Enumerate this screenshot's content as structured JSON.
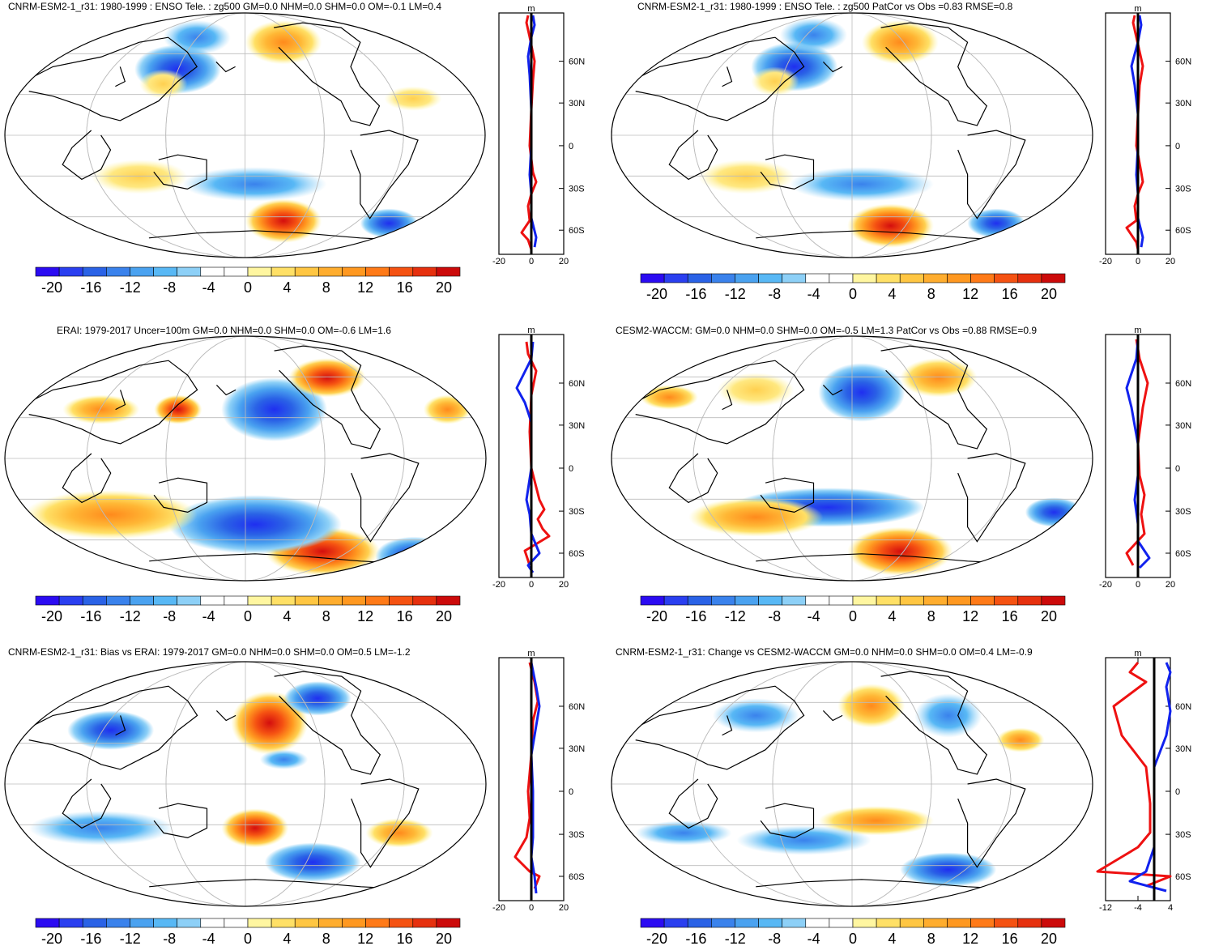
{
  "colorbar": {
    "labels": [
      "-20",
      "-16",
      "-12",
      "-8",
      "-4",
      "0",
      "4",
      "8",
      "12",
      "16",
      "20"
    ],
    "colors": [
      "#2b0bf2",
      "#2a3ff0",
      "#2a62e6",
      "#3a82ec",
      "#4aa2f0",
      "#58b8f5",
      "#8dd0f7",
      "#ffffff",
      "#ffffff",
      "#fff6a0",
      "#ffe066",
      "#ffc642",
      "#ffad2e",
      "#ff9820",
      "#ff7a18",
      "#f55212",
      "#e6300e",
      "#cc0a0a"
    ]
  },
  "panels": [
    {
      "title": "CNRM-ESM2-1_r31: 1980-1999 : ENSO Tele. : zg500 GM=0.0 NHM=0.0 SHM=0.0 OM=-0.1 LM=0.4",
      "profile_unit": "m",
      "xticks": [
        "-20",
        "0",
        "20"
      ],
      "lat_labels": [
        "60N",
        "30N",
        "0",
        "30S",
        "60S"
      ]
    },
    {
      "title": "CNRM-ESM2-1_r31: 1980-1999 : ENSO Tele. : zg500 PatCor vs Obs =0.83 RMSE=0.8",
      "profile_unit": "m",
      "xticks": [
        "-20",
        "0",
        "20"
      ],
      "lat_labels": [
        "60N",
        "30N",
        "0",
        "30S",
        "60S"
      ]
    },
    {
      "title": "ERAI: 1979-2017 Uncer=100m GM=0.0 NHM=0.0 SHM=0.0 OM=-0.6 LM=1.6",
      "profile_unit": "m",
      "xticks": [
        "-20",
        "0",
        "20"
      ],
      "lat_labels": [
        "60N",
        "30N",
        "0",
        "30S",
        "60S"
      ]
    },
    {
      "title": "CESM2-WACCM: GM=0.0 NHM=0.0 SHM=0.0 OM=-0.5 LM=1.3 PatCor vs Obs =0.88 RMSE=0.9",
      "profile_unit": "m",
      "xticks": [
        "-20",
        "0",
        "20"
      ],
      "lat_labels": [
        "60N",
        "30N",
        "0",
        "30S",
        "60S"
      ]
    },
    {
      "title": "CNRM-ESM2-1_r31: Bias vs ERAI: 1979-2017 GM=0.0 NHM=0.0 SHM=0.0 OM=0.5 LM=-1.2",
      "profile_unit": "m",
      "xticks": [
        "-20",
        "0",
        "20"
      ],
      "lat_labels": [
        "60N",
        "30N",
        "0",
        "30S",
        "60S"
      ]
    },
    {
      "title": "CNRM-ESM2-1_r31: Change vs CESM2-WACCM GM=0.0 NHM=0.0 SHM=0.0 OM=0.4 LM=-0.9",
      "profile_unit": "m",
      "xticks": [
        "-12",
        "-4",
        "4"
      ],
      "lat_labels": [
        "60N",
        "30N",
        "0",
        "30S",
        "60S"
      ]
    }
  ]
}
